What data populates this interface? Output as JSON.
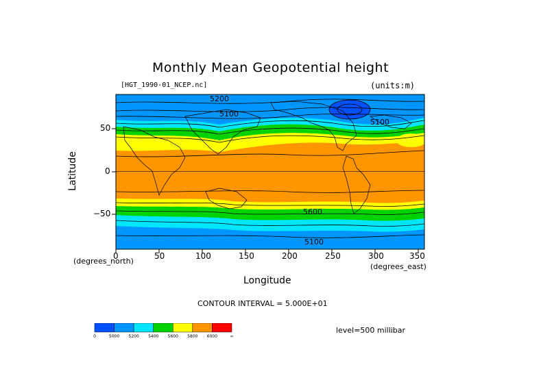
{
  "title": "Monthly Mean Geopotential height",
  "file_label": "[HGT_1990-01_NCEP.nc]",
  "units_label": "(units:m)",
  "y_axis": {
    "label": "Latitude",
    "unit": "(degrees_north)",
    "ticks": [
      "50",
      "0",
      "−50"
    ]
  },
  "x_axis": {
    "label": "Longitude",
    "unit": "(degrees_east)",
    "ticks": [
      "0",
      "50",
      "100",
      "150",
      "200",
      "250",
      "300",
      "350"
    ]
  },
  "contour_interval": "CONTOUR INTERVAL = 5.000E+01",
  "level": "level=500 millibar",
  "contour_labels": [
    "5200",
    "5100",
    "5100",
    "5600",
    "5100"
  ],
  "legend": {
    "colors": [
      "#0050ff",
      "#0096ff",
      "#00e6ff",
      "#00d200",
      "#ffff00",
      "#ff9600",
      "#ff0000"
    ],
    "labels": [
      "0",
      "5000",
      "5200",
      "5400",
      "5600",
      "5800",
      "6000",
      "∞"
    ]
  },
  "chart_data": {
    "type": "heatmap",
    "title": "Monthly Mean Geopotential height",
    "xlabel": "Longitude",
    "ylabel": "Latitude",
    "xlim": [
      0,
      360
    ],
    "ylim": [
      -90,
      90
    ],
    "x_ticks": [
      0,
      50,
      100,
      150,
      200,
      250,
      300,
      350
    ],
    "y_ticks": [
      50,
      0,
      -50
    ],
    "color_levels": [
      0,
      5000,
      5200,
      5400,
      5600,
      5800,
      6000
    ],
    "contour_interval": 50,
    "level_mb": 500
  }
}
